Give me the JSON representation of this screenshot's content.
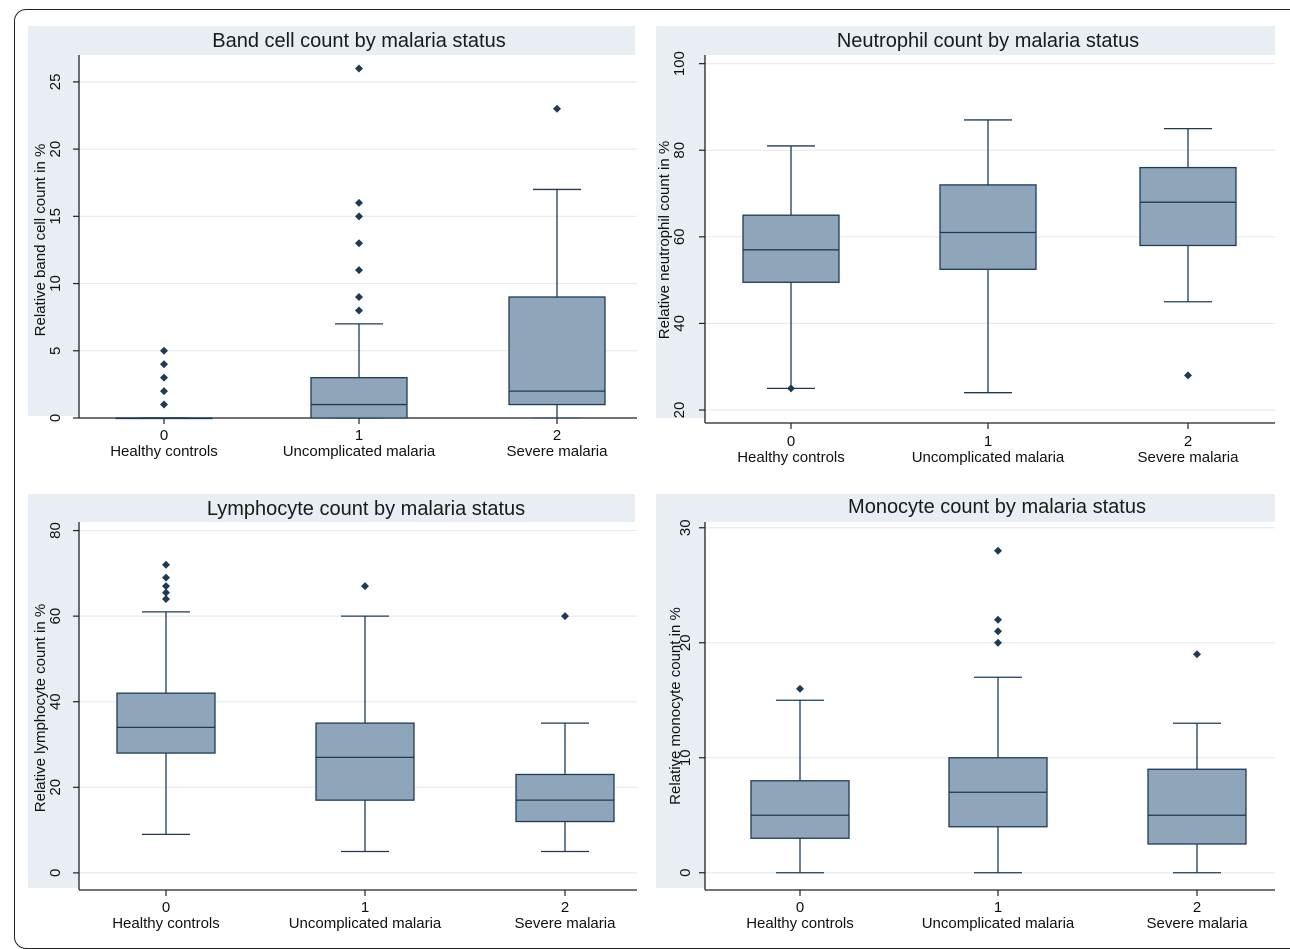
{
  "chart_data": [
    {
      "type": "box",
      "title": "Band cell count by malaria status",
      "ylabel": "Relative band cell count in %",
      "xlabel": "",
      "ylim": [
        0,
        27
      ],
      "yticks": [
        0,
        5,
        10,
        15,
        20,
        25
      ],
      "categories": [
        {
          "code": "0",
          "label": "Healthy controls"
        },
        {
          "code": "1",
          "label": "Uncomplicated malaria"
        },
        {
          "code": "2",
          "label": "Severe malaria"
        }
      ],
      "boxes": [
        {
          "low": 0,
          "q1": 0,
          "median": 0,
          "q3": 0,
          "high": 0,
          "outliers": [
            1,
            2,
            3,
            4,
            5
          ]
        },
        {
          "low": 0,
          "q1": 0,
          "median": 1,
          "q3": 3,
          "high": 7,
          "outliers": [
            8,
            9,
            11,
            13,
            15,
            16,
            26
          ]
        },
        {
          "low": 0,
          "q1": 1,
          "median": 2,
          "q3": 9,
          "high": 17,
          "outliers": [
            23
          ]
        }
      ]
    },
    {
      "type": "box",
      "title": "Neutrophil count by malaria status",
      "ylabel": "Relative neutrophil count in %",
      "xlabel": "",
      "ylim": [
        17,
        102
      ],
      "yticks": [
        20,
        40,
        60,
        80,
        100
      ],
      "categories": [
        {
          "code": "0",
          "label": "Healthy controls"
        },
        {
          "code": "1",
          "label": "Uncomplicated malaria"
        },
        {
          "code": "2",
          "label": "Severe malaria"
        }
      ],
      "boxes": [
        {
          "low": 25,
          "q1": 49.5,
          "median": 57,
          "q3": 65,
          "high": 81,
          "outliers": [
            25
          ]
        },
        {
          "low": 24,
          "q1": 52.5,
          "median": 61,
          "q3": 72,
          "high": 87,
          "outliers": []
        },
        {
          "low": 45,
          "q1": 58,
          "median": 68,
          "q3": 76,
          "high": 85,
          "outliers": [
            28
          ]
        }
      ]
    },
    {
      "type": "box",
      "title": "Lymphocyte count by malaria status",
      "ylabel": "Relative lymphocyte count in %",
      "xlabel": "",
      "ylim": [
        -4,
        82
      ],
      "yticks": [
        0,
        20,
        40,
        60,
        80
      ],
      "categories": [
        {
          "code": "0",
          "label": "Healthy controls"
        },
        {
          "code": "1",
          "label": "Uncomplicated malaria"
        },
        {
          "code": "2",
          "label": "Severe malaria"
        }
      ],
      "boxes": [
        {
          "low": 9,
          "q1": 28,
          "median": 34,
          "q3": 42,
          "high": 61,
          "outliers": [
            64,
            65.5,
            67,
            69,
            72
          ]
        },
        {
          "low": 5,
          "q1": 17,
          "median": 27,
          "q3": 35,
          "high": 60,
          "outliers": [
            67
          ]
        },
        {
          "low": 5,
          "q1": 12,
          "median": 17,
          "q3": 23,
          "high": 35,
          "outliers": [
            60
          ]
        }
      ]
    },
    {
      "type": "box",
      "title": "Monocyte count by malaria status",
      "ylabel": "Relative monocyte count in %",
      "xlabel": "",
      "ylim": [
        -1.5,
        30.5
      ],
      "yticks": [
        0,
        10,
        20,
        30
      ],
      "categories": [
        {
          "code": "0",
          "label": "Healthy controls"
        },
        {
          "code": "1",
          "label": "Uncomplicated malaria"
        },
        {
          "code": "2",
          "label": "Severe malaria"
        }
      ],
      "boxes": [
        {
          "low": 0,
          "q1": 3,
          "median": 5,
          "q3": 8,
          "high": 15,
          "outliers": [
            16
          ]
        },
        {
          "low": 0,
          "q1": 4,
          "median": 7,
          "q3": 10,
          "high": 17,
          "outliers": [
            20,
            21,
            22,
            28
          ]
        },
        {
          "low": 0,
          "q1": 2.5,
          "median": 5,
          "q3": 9,
          "high": 13,
          "outliers": [
            19
          ]
        }
      ]
    }
  ],
  "colors": {
    "box_fill": "#8fa5b9",
    "box_stroke": "#1d3b57",
    "outlier": "#1d3b57",
    "plot_band": "#e8eef3",
    "panel_bg": "#ffffff",
    "grid": "#e6ecf0",
    "axis": "#222222"
  }
}
